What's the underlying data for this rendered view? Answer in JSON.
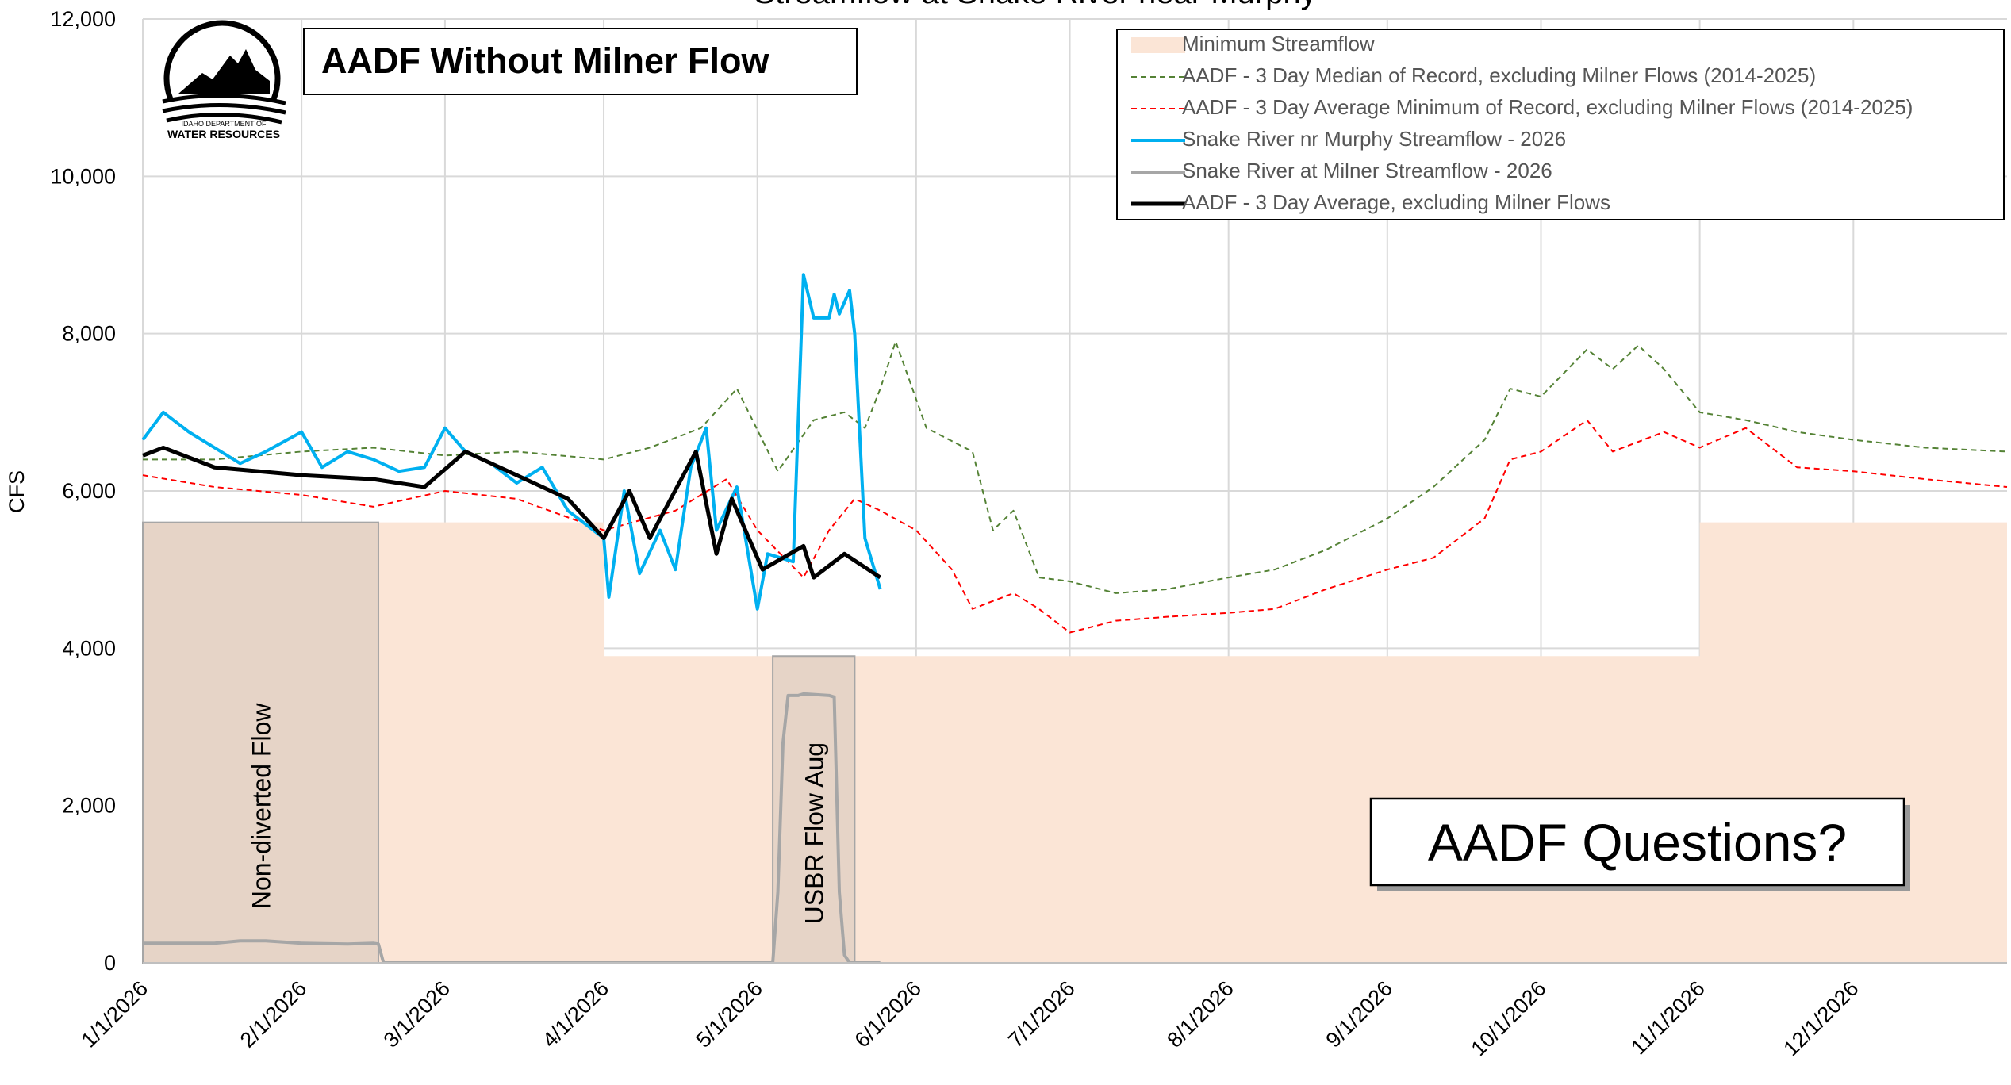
{
  "chart_data": {
    "type": "line",
    "title": "Streamflow at Snake River near Murphy",
    "y_label": "CFS",
    "xlim": [
      "1/1/2026",
      "12/31/2026"
    ],
    "xticks": [
      "1/1/2026",
      "2/1/2026",
      "3/1/2026",
      "4/1/2026",
      "5/1/2026",
      "6/1/2026",
      "7/1/2026",
      "8/1/2026",
      "9/1/2026",
      "10/1/2026",
      "11/1/2026",
      "12/1/2026"
    ],
    "ylim": [
      0,
      12000
    ],
    "yticks": [
      {
        "value": 0,
        "label": "0"
      },
      {
        "value": 2000,
        "label": "2,000"
      },
      {
        "value": 4000,
        "label": "4,000"
      },
      {
        "value": 6000,
        "label": "6,000"
      },
      {
        "value": 8000,
        "label": "8,000"
      },
      {
        "value": 10000,
        "label": "10,000"
      },
      {
        "value": 12000,
        "label": "12,000"
      }
    ],
    "grid": true,
    "legend": "top right",
    "series": [
      {
        "name": "Minimum Streamflow",
        "color": "#fbe5d6",
        "fill": true,
        "x": [
          "1/1/2026",
          "4/1/2026",
          "4/1/2026",
          "11/1/2026",
          "11/1/2026",
          "12/31/2026"
        ],
        "values": [
          5600,
          5600,
          3900,
          3900,
          5600,
          5600
        ]
      },
      {
        "name": "AADF - 3 Day Median of Record, excluding Milner Flows (2014-2025)",
        "color": "#548235",
        "dash": true,
        "x": [
          "1/1/2026",
          "1/15/2026",
          "2/1/2026",
          "2/15/2026",
          "3/1/2026",
          "3/15/2026",
          "4/1/2026",
          "4/10/2026",
          "4/20/2026",
          "4/27/2026",
          "5/5/2026",
          "5/12/2026",
          "5/18/2026",
          "5/22/2026",
          "5/25/2026",
          "5/28/2026",
          "6/3/2026",
          "6/12/2026",
          "6/16/2026",
          "6/20/2026",
          "6/25/2026",
          "7/1/2026",
          "7/10/2026",
          "7/20/2026",
          "8/1/2026",
          "8/10/2026",
          "8/20/2026",
          "9/1/2026",
          "9/10/2026",
          "9/20/2026",
          "9/25/2026",
          "10/1/2026",
          "10/10/2026",
          "10/15/2026",
          "10/20/2026",
          "10/25/2026",
          "11/1/2026",
          "11/10/2026",
          "11/20/2026",
          "12/1/2026",
          "12/15/2026",
          "12/31/2026"
        ],
        "values": [
          6400,
          6400,
          6500,
          6550,
          6450,
          6500,
          6400,
          6550,
          6800,
          7300,
          6250,
          6900,
          7000,
          6800,
          7300,
          7900,
          6800,
          6500,
          5500,
          5750,
          4900,
          4850,
          4700,
          4750,
          4900,
          5000,
          5250,
          5650,
          6050,
          6650,
          7300,
          7200,
          7800,
          7550,
          7850,
          7550,
          7000,
          6900,
          6750,
          6650,
          6550,
          6500
        ]
      },
      {
        "name": "AADF - 3 Day Average Minimum of Record, excluding Milner Flows (2014-2025)",
        "color": "#ff0000",
        "dash": true,
        "x": [
          "1/1/2026",
          "1/15/2026",
          "2/1/2026",
          "2/15/2026",
          "3/1/2026",
          "3/15/2026",
          "4/1/2026",
          "4/15/2026",
          "4/25/2026",
          "5/1/2026",
          "5/10/2026",
          "5/15/2026",
          "5/20/2026",
          "5/25/2026",
          "6/1/2026",
          "6/8/2026",
          "6/12/2026",
          "6/20/2026",
          "6/25/2026",
          "7/1/2026",
          "7/10/2026",
          "7/20/2026",
          "8/1/2026",
          "8/10/2026",
          "8/20/2026",
          "9/1/2026",
          "9/10/2026",
          "9/20/2026",
          "9/25/2026",
          "10/1/2026",
          "10/10/2026",
          "10/15/2026",
          "10/25/2026",
          "11/1/2026",
          "11/10/2026",
          "11/20/2026",
          "12/1/2026",
          "12/15/2026",
          "12/31/2026"
        ],
        "values": [
          6200,
          6050,
          5950,
          5800,
          6000,
          5900,
          5500,
          5750,
          6150,
          5500,
          4900,
          5500,
          5900,
          5750,
          5500,
          5000,
          4500,
          4700,
          4500,
          4200,
          4350,
          4400,
          4450,
          4500,
          4750,
          5000,
          5150,
          5650,
          6400,
          6500,
          6900,
          6500,
          6750,
          6550,
          6800,
          6300,
          6250,
          6150,
          6050
        ]
      },
      {
        "name": "Snake River nr Murphy Streamflow - 2026",
        "color": "#00b0f0",
        "x": [
          "1/1/2026",
          "1/5/2026",
          "1/10/2026",
          "1/15/2026",
          "1/20/2026",
          "1/25/2026",
          "2/1/2026",
          "2/5/2026",
          "2/10/2026",
          "2/15/2026",
          "2/20/2026",
          "2/25/2026",
          "3/1/2026",
          "3/5/2026",
          "3/10/2026",
          "3/15/2026",
          "3/20/2026",
          "3/25/2026",
          "4/1/2026",
          "4/2/2026",
          "4/5/2026",
          "4/8/2026",
          "4/12/2026",
          "4/15/2026",
          "4/18/2026",
          "4/21/2026",
          "4/23/2026",
          "4/27/2026",
          "5/1/2026",
          "5/3/2026",
          "5/8/2026",
          "5/10/2026",
          "5/12/2026",
          "5/15/2026",
          "5/16/2026",
          "5/17/2026",
          "5/19/2026",
          "5/20/2026",
          "5/22/2026",
          "5/25/2026"
        ],
        "values": [
          6650,
          7000,
          6750,
          6550,
          6350,
          6500,
          6750,
          6300,
          6500,
          6400,
          6250,
          6300,
          6800,
          6500,
          6350,
          6100,
          6300,
          5750,
          5400,
          4650,
          6000,
          4950,
          5500,
          5000,
          6300,
          6800,
          5500,
          6050,
          4500,
          5200,
          5100,
          8750,
          8200,
          8200,
          8500,
          8250,
          8550,
          8000,
          5400,
          4750
        ]
      },
      {
        "name": "Snake River at Milner Streamflow - 2026",
        "color": "#a6a6a6",
        "x": [
          "1/1/2026",
          "1/15/2026",
          "1/20/2026",
          "1/25/2026",
          "2/1/2026",
          "2/10/2026",
          "2/15/2026",
          "2/16/2026",
          "2/17/2026",
          "5/4/2026",
          "5/5/2026",
          "5/6/2026",
          "5/7/2026",
          "5/9/2026",
          "5/10/2026",
          "5/15/2026",
          "5/16/2026",
          "5/17/2026",
          "5/18/2026",
          "5/19/2026",
          "5/25/2026"
        ],
        "values": [
          250,
          250,
          280,
          280,
          250,
          240,
          250,
          240,
          0,
          0,
          900,
          2800,
          3400,
          3400,
          3420,
          3400,
          3380,
          900,
          100,
          0,
          0
        ]
      },
      {
        "name": "AADF - 3 Day Average, excluding Milner Flows",
        "color": "#000000",
        "width": 5,
        "x": [
          "1/1/2026",
          "1/5/2026",
          "1/15/2026",
          "2/1/2026",
          "2/15/2026",
          "2/25/2026",
          "3/5/2026",
          "3/15/2026",
          "3/25/2026",
          "4/1/2026",
          "4/6/2026",
          "4/10/2026",
          "4/19/2026",
          "4/23/2026",
          "4/26/2026",
          "5/2/2026",
          "5/10/2026",
          "5/12/2026",
          "5/18/2026",
          "5/25/2026"
        ],
        "values": [
          6450,
          6550,
          6300,
          6200,
          6150,
          6050,
          6500,
          6200,
          5900,
          5400,
          6000,
          5400,
          6500,
          5200,
          5900,
          5000,
          5300,
          4900,
          5200,
          4900
        ]
      }
    ],
    "regions": [
      {
        "label": "Non-diverted Flow",
        "start": "1/1/2026",
        "end": "2/16/2026",
        "top": 5600
      },
      {
        "label": "USBR  Flow Aug",
        "start": "5/4/2026",
        "end": "5/20/2026",
        "top": 3900
      }
    ],
    "boxes": [
      "AADF Without Milner Flow",
      "AADF Questions?"
    ],
    "logo": [
      "IDAHO DEPARTMENT OF",
      "WATER RESOURCES"
    ]
  }
}
